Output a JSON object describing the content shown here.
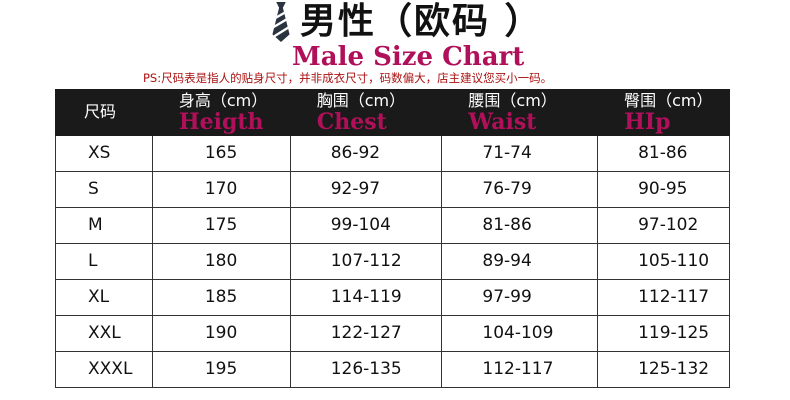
{
  "title": "男性（欧码 ）",
  "subtitle_en": "Male Size Chart",
  "note": "PS:尺码表是指人的贴身尺寸，并非成衣尺寸，码数偏大，店主建议您买小一码。",
  "icon": "necktie-icon",
  "headers": [
    {
      "cn": "尺码",
      "en": ""
    },
    {
      "cn": "身高（cm）",
      "en": "Heigth"
    },
    {
      "cn": "胸围（cm）",
      "en": "Chest"
    },
    {
      "cn": "腰围（cm）",
      "en": "Waist"
    },
    {
      "cn": "臀围（cm）",
      "en": "HIp"
    }
  ],
  "rows": [
    [
      "XS",
      "165",
      "86-92",
      "71-74",
      "81-86"
    ],
    [
      "S",
      "170",
      "92-97",
      "76-79",
      "90-95"
    ],
    [
      "M",
      "175",
      "99-104",
      "81-86",
      "97-102"
    ],
    [
      "L",
      "180",
      "107-112",
      "89-94",
      "105-110"
    ],
    [
      "XL",
      "185",
      "114-119",
      "97-99",
      "112-117"
    ],
    [
      "XXL",
      "190",
      "122-127",
      "104-109",
      "119-125"
    ],
    [
      "XXXL",
      "195",
      "126-135",
      "112-117",
      "125-132"
    ]
  ]
}
